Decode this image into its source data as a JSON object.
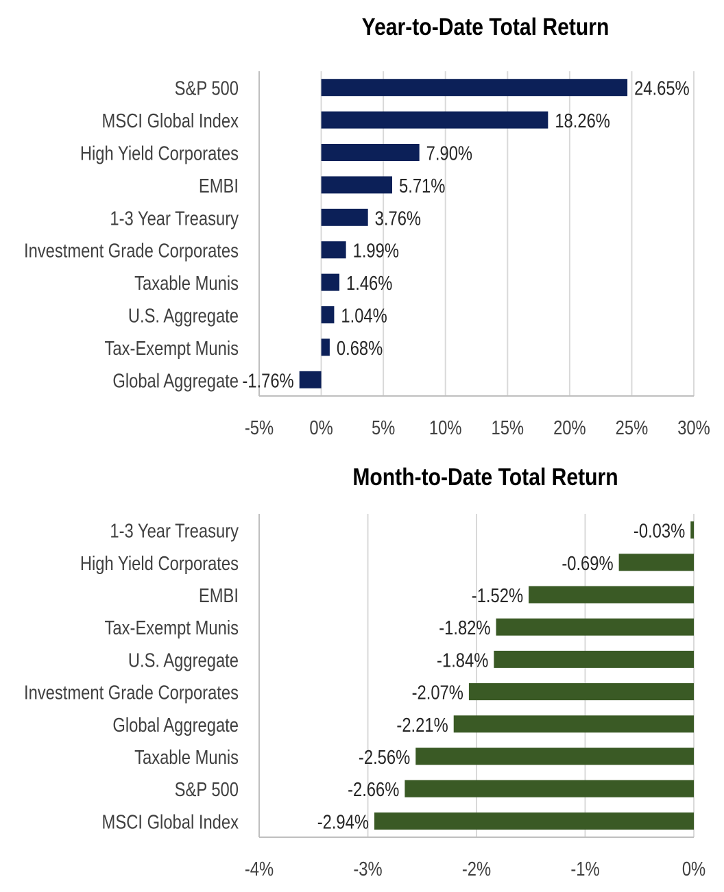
{
  "chart_data": [
    {
      "type": "bar",
      "orientation": "horizontal",
      "title": "Year-to-Date Total Return",
      "categories": [
        "S&P 500",
        "MSCI Global Index",
        "High Yield Corporates",
        "EMBI",
        "1-3 Year Treasury",
        "Investment Grade Corporates",
        "Taxable Munis",
        "U.S. Aggregate",
        "Tax-Exempt Munis",
        "Global Aggregate"
      ],
      "values": [
        24.65,
        18.26,
        7.9,
        5.71,
        3.76,
        1.99,
        1.46,
        1.04,
        0.68,
        -1.76
      ],
      "data_labels": [
        "24.65%",
        "18.26%",
        "7.90%",
        "5.71%",
        "3.76%",
        "1.99%",
        "1.46%",
        "1.04%",
        "0.68%",
        "-1.76%"
      ],
      "xlim": [
        -5,
        30
      ],
      "xticks": [
        -5,
        0,
        5,
        10,
        15,
        20,
        25,
        30
      ],
      "xtick_labels": [
        "-5%",
        "0%",
        "5%",
        "10%",
        "15%",
        "20%",
        "25%",
        "30%"
      ],
      "grid": true,
      "legend": "none",
      "color": "#0c2058"
    },
    {
      "type": "bar",
      "orientation": "horizontal",
      "title": "Month-to-Date Total Return",
      "categories": [
        "1-3 Year Treasury",
        "High Yield Corporates",
        "EMBI",
        "Tax-Exempt Munis",
        "U.S. Aggregate",
        "Investment Grade Corporates",
        "Global Aggregate",
        "Taxable Munis",
        "S&P 500",
        "MSCI Global Index"
      ],
      "values": [
        -0.03,
        -0.69,
        -1.52,
        -1.82,
        -1.84,
        -2.07,
        -2.21,
        -2.56,
        -2.66,
        -2.94
      ],
      "data_labels": [
        "-0.03%",
        "-0.69%",
        "-1.52%",
        "-1.82%",
        "-1.84%",
        "-2.07%",
        "-2.21%",
        "-2.56%",
        "-2.66%",
        "-2.94%"
      ],
      "xlim": [
        -4,
        0
      ],
      "xticks": [
        -4,
        -3,
        -2,
        -1,
        0
      ],
      "xtick_labels": [
        "-4%",
        "-3%",
        "-2%",
        "-1%",
        "0%"
      ],
      "grid": true,
      "legend": "none",
      "color": "#3a5a25"
    }
  ],
  "colors": {
    "label_text": "#404040",
    "grid": "#d9d9d9",
    "axis": "#bfbfbf"
  }
}
